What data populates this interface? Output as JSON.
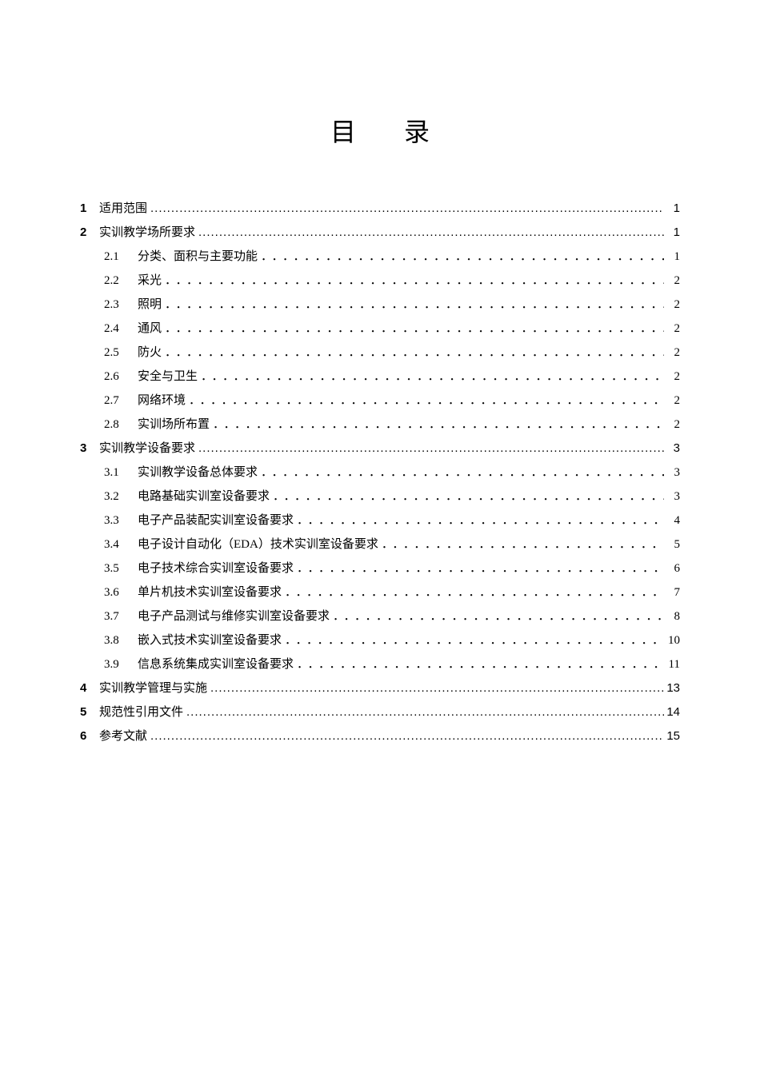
{
  "title": "目录",
  "leader_dense": "........................................................................................................................................................................................",
  "leader_sparse": "．．．．．．．．．．．．．．．．．．．．．．．．．．．．．．．．．．．．．．．．．．．．．．．．．．．．．．．．．．．．．．．．．．．．．．．．．．．．．．．．．．．．．．．．．．．．．．．．．．",
  "entries": [
    {
      "type": "l1",
      "num": "1",
      "title": "适用范围",
      "page": "1"
    },
    {
      "type": "l1",
      "num": "2",
      "title": "实训教学场所要求",
      "page": "1"
    },
    {
      "type": "l2",
      "num": "2.1",
      "title": "分类、面积与主要功能",
      "page": "1"
    },
    {
      "type": "l2",
      "num": "2.2",
      "title": "采光",
      "page": "2"
    },
    {
      "type": "l2",
      "num": "2.3",
      "title": "照明",
      "page": "2"
    },
    {
      "type": "l2",
      "num": "2.4",
      "title": "通风",
      "page": "2"
    },
    {
      "type": "l2",
      "num": "2.5",
      "title": "防火",
      "page": "2"
    },
    {
      "type": "l2",
      "num": "2.6",
      "title": "安全与卫生",
      "page": "2"
    },
    {
      "type": "l2",
      "num": "2.7",
      "title": "网络环境",
      "page": "2"
    },
    {
      "type": "l2",
      "num": "2.8",
      "title": "实训场所布置",
      "page": "2"
    },
    {
      "type": "l1",
      "num": "3",
      "title": "实训教学设备要求",
      "page": "3"
    },
    {
      "type": "l2",
      "num": "3.1",
      "title": "实训教学设备总体要求",
      "page": "3"
    },
    {
      "type": "l2",
      "num": "3.2",
      "title": "电路基础实训室设备要求",
      "page": "3"
    },
    {
      "type": "l2",
      "num": "3.3",
      "title": "电子产品装配实训室设备要求",
      "page": "4"
    },
    {
      "type": "l2",
      "num": "3.4",
      "title": "电子设计自动化（EDA）技术实训室设备要求",
      "page": "5"
    },
    {
      "type": "l2",
      "num": "3.5",
      "title": "电子技术综合实训室设备要求",
      "page": "6"
    },
    {
      "type": "l2",
      "num": "3.6",
      "title": "单片机技术实训室设备要求",
      "page": "7"
    },
    {
      "type": "l2",
      "num": "3.7",
      "title": "电子产品测试与维修实训室设备要求",
      "page": "8"
    },
    {
      "type": "l2",
      "num": "3.8",
      "title": "嵌入式技术实训室设备要求",
      "page": "10"
    },
    {
      "type": "l2",
      "num": "3.9",
      "title": "信息系统集成实训室设备要求",
      "page": "11"
    },
    {
      "type": "l1",
      "num": "4",
      "title": "实训教学管理与实施",
      "page": "13"
    },
    {
      "type": "l1",
      "num": "5",
      "title": "规范性引用文件",
      "page": "14"
    },
    {
      "type": "l1",
      "num": "6",
      "title": "参考文献",
      "page": "15"
    }
  ]
}
